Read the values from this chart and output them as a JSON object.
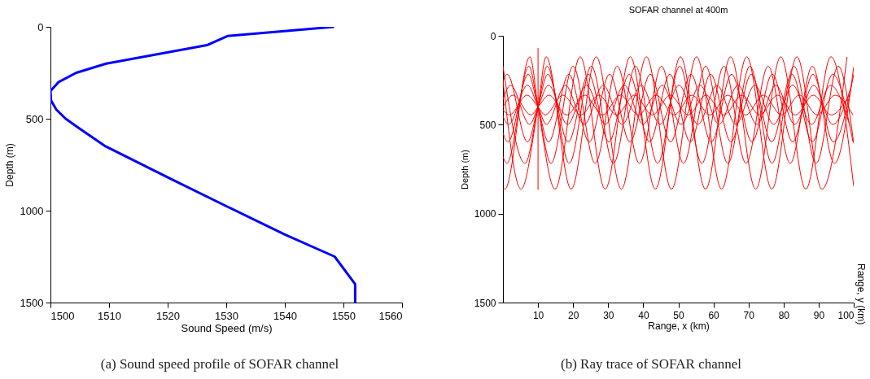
{
  "chart_data": [
    {
      "type": "line",
      "xlabel": "Sound Speed (m/s)",
      "ylabel": "Depth (m)",
      "xlim": [
        1500,
        1560
      ],
      "xticks": [
        1500,
        1510,
        1520,
        1530,
        1540,
        1550,
        1560
      ],
      "ylim": [
        1500,
        0
      ],
      "yticks": [
        0,
        500,
        1000,
        1500
      ],
      "annotations": [
        "(a) Sound speed profile of SOFAR channel"
      ],
      "series": [
        {
          "color": "#0000ff",
          "x": [
            1548.4,
            1530.2,
            1526.7,
            1509.5,
            1504.4,
            1501.4,
            1500,
            1500.1,
            1501,
            1502.6,
            1504.8,
            1509.4,
            1520.1,
            1530.3,
            1540,
            1548.5,
            1552,
            1552
          ],
          "values": [
            0,
            50,
            100,
            200,
            250,
            300,
            350,
            400,
            450,
            500,
            550,
            650,
            820,
            980,
            1130,
            1250,
            1400,
            1500
          ]
        }
      ]
    },
    {
      "type": "line",
      "title": "SOFAR channel at 400m",
      "xlabel": "Range, x (km)",
      "ylabel": "Depth (m)",
      "y2label": "Range, y (km)",
      "xlim": [
        0,
        100
      ],
      "xticks": [
        10,
        20,
        30,
        40,
        50,
        60,
        70,
        80,
        90,
        100
      ],
      "ylim": [
        1500,
        0
      ],
      "yticks": [
        0,
        500,
        1000,
        1500
      ],
      "annotations": [
        "(b) Ray trace of SOFAR channel"
      ],
      "series": [
        {
          "color": "#ff0000",
          "x": [
            0,
            5.15,
            10,
            12.3,
            19.45,
            26.6,
            33.75,
            40.9,
            48.05,
            55.2,
            62.35,
            69.5,
            76.65,
            83.8,
            90.95,
            98.1
          ],
          "values": [
            253,
            862,
            400,
            118,
            862,
            118,
            862,
            118,
            862,
            118,
            862,
            118,
            862,
            118,
            862,
            118
          ]
        },
        {
          "color": "#ff0000",
          "x": [
            0,
            0.55,
            7.7,
            10,
            14.85,
            22,
            29.15,
            36.3,
            43.45,
            50.6,
            57.75,
            64.9,
            72.05,
            79.2,
            86.35,
            93.5,
            100
          ],
          "values": [
            860,
            862,
            118,
            400,
            862,
            118,
            862,
            118,
            862,
            118,
            862,
            118,
            862,
            118,
            862,
            118,
            847
          ]
        },
        {
          "color": "#ff0000",
          "x": [
            0,
            6.3,
            10,
            12.6,
            18.9,
            25.2,
            31.5,
            37.8,
            44.1,
            50.4,
            56.7,
            63,
            69.3,
            75.6,
            81.9,
            88.2,
            94.5,
            100
          ],
          "values": [
            171,
            717,
            400,
            171,
            717,
            171,
            717,
            171,
            717,
            171,
            717,
            171,
            717,
            171,
            717,
            171,
            717,
            175
          ]
        },
        {
          "color": "#ff0000",
          "x": [
            0,
            1.1,
            7.4,
            10,
            13.7,
            20,
            26.3,
            32.6,
            38.9,
            45.2,
            51.5,
            57.8,
            64.1,
            70.4,
            76.7,
            83,
            89.3,
            95.6,
            100
          ],
          "values": [
            679,
            717,
            171,
            400,
            717,
            171,
            717,
            171,
            717,
            171,
            717,
            171,
            717,
            171,
            717,
            171,
            717,
            171,
            605
          ]
        },
        {
          "color": "#ff0000",
          "x": [
            0,
            1.2,
            7,
            10,
            12.8,
            18.6,
            24.4,
            30.2,
            36,
            41.8,
            47.6,
            53.4,
            59.2,
            65,
            70.8,
            76.6,
            82.4,
            88.2,
            94,
            99.8
          ],
          "values": [
            256,
            216,
            597,
            400,
            216,
            597,
            216,
            597,
            216,
            597,
            216,
            597,
            216,
            597,
            216,
            597,
            216,
            597,
            216,
            597
          ]
        },
        {
          "color": "#ff0000",
          "x": [
            0,
            1.4,
            7.2,
            10,
            13,
            18.8,
            24.6,
            30.4,
            36.2,
            42,
            47.8,
            53.6,
            59.4,
            65.2,
            71,
            76.8,
            82.6,
            88.4,
            94.2,
            100
          ],
          "values": [
            546,
            597,
            216,
            400,
            597,
            216,
            597,
            216,
            597,
            216,
            597,
            216,
            597,
            216,
            597,
            216,
            597,
            216,
            597,
            216
          ]
        },
        {
          "color": "#ff0000",
          "x": [
            0,
            2.2,
            7.6,
            10,
            13,
            18.4,
            23.8,
            29.2,
            34.6,
            40,
            45.4,
            50.8,
            56.2,
            61.6,
            67,
            72.4,
            77.8,
            83.2,
            88.6,
            94,
            99.4
          ],
          "values": [
            357,
            278,
            498,
            400,
            278,
            498,
            278,
            498,
            278,
            498,
            278,
            498,
            278,
            498,
            278,
            498,
            278,
            498,
            278,
            498,
            278
          ]
        },
        {
          "color": "#ff0000",
          "x": [
            0,
            1.6,
            7,
            10,
            12.4,
            17.8,
            23.2,
            28.6,
            34,
            39.4,
            44.8,
            50.2,
            55.6,
            61,
            66.4,
            71.8,
            77.2,
            82.6,
            88,
            93.4,
            98.8
          ],
          "values": [
            453,
            498,
            278,
            400,
            498,
            278,
            498,
            278,
            498,
            278,
            498,
            278,
            498,
            278,
            498,
            278,
            498,
            278,
            498,
            278,
            498
          ]
        },
        {
          "color": "#ff0000",
          "x": [
            0,
            2.9,
            8,
            10,
            13.1,
            18.2,
            23.3,
            28.4,
            33.5,
            38.6,
            43.7,
            48.8,
            53.9,
            59,
            64.1,
            69.2,
            74.3,
            79.4,
            84.5,
            89.6,
            94.7,
            99.8
          ],
          "values": [
            402,
            334,
            445,
            400,
            334,
            445,
            334,
            445,
            334,
            445,
            334,
            445,
            334,
            445,
            334,
            445,
            334,
            445,
            334,
            445,
            334,
            445
          ]
        },
        {
          "color": "#ff0000",
          "x": [
            0,
            1.8,
            6.9,
            10,
            12,
            17.1,
            22.2,
            27.3,
            32.4,
            37.5,
            42.6,
            47.7,
            52.8,
            57.9,
            63,
            68.1,
            73.2,
            78.3,
            83.4,
            88.5,
            93.6,
            98.7
          ],
          "values": [
            415,
            445,
            334,
            400,
            445,
            334,
            445,
            334,
            445,
            334,
            445,
            334,
            445,
            334,
            445,
            334,
            445,
            334,
            445,
            334,
            445,
            334
          ]
        },
        {
          "color": "#ff0000",
          "x": [
            10,
            10
          ],
          "values": [
            68,
            866
          ]
        }
      ]
    }
  ]
}
